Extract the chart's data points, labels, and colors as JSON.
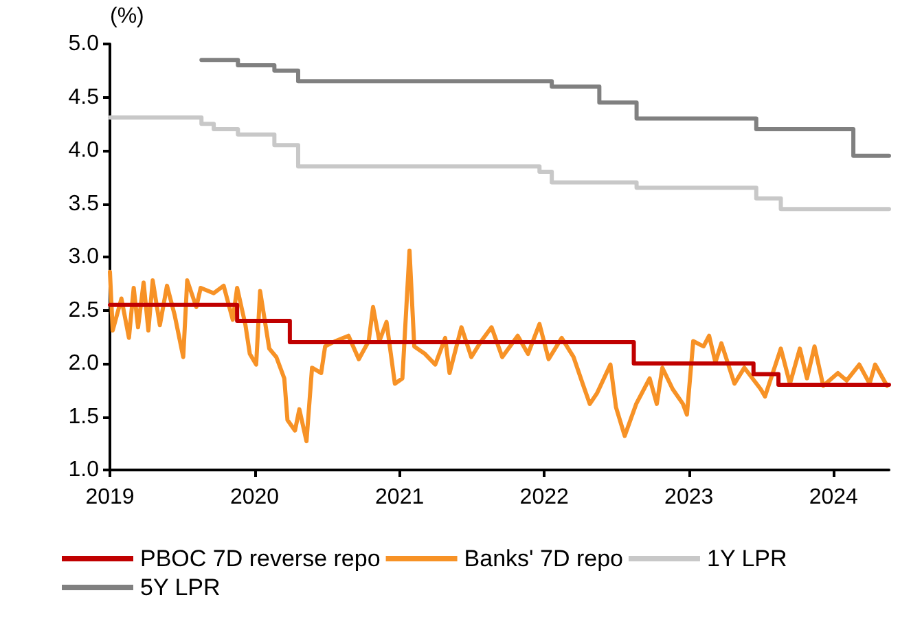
{
  "chart_data": {
    "type": "line",
    "ylabel": "(%)",
    "xlim": [
      "2019-01-01",
      "2024-05-20"
    ],
    "xticks": [
      "2019",
      "2020",
      "2021",
      "2022",
      "2023",
      "2024"
    ],
    "ylim": [
      1.0,
      5.0
    ],
    "yticks": [
      {
        "value": 1.0,
        "label": "1.0"
      },
      {
        "value": 1.5,
        "label": "1.5"
      },
      {
        "value": 2.0,
        "label": "2.0"
      },
      {
        "value": 2.5,
        "label": "2.5"
      },
      {
        "value": 3.0,
        "label": "3.0"
      },
      {
        "value": 3.5,
        "label": "3.5"
      },
      {
        "value": 4.0,
        "label": "4.0"
      },
      {
        "value": 4.5,
        "label": "4.5"
      },
      {
        "value": 5.0,
        "label": "5.0"
      }
    ],
    "grid": false,
    "legend": "bottom",
    "marker": "none",
    "line_style": "solid",
    "series": [
      {
        "name": "PBOC 7D reverse repo",
        "type": "step",
        "color": "#c00000",
        "x": [
          "2019-01-01",
          "2019-11-18",
          "2020-03-30",
          "2022-08-15",
          "2023-06-13",
          "2023-08-15",
          "2024-05-20"
        ],
        "values": [
          2.55,
          2.4,
          2.2,
          2.0,
          1.9,
          1.8,
          1.8
        ]
      },
      {
        "name": "Banks' 7D repo",
        "color": "#f79226",
        "x": [
          "2019-01-01",
          "2019-01-08",
          "2019-01-30",
          "2019-02-18",
          "2019-03-02",
          "2019-03-13",
          "2019-03-27",
          "2019-04-08",
          "2019-04-19",
          "2019-05-07",
          "2019-05-25",
          "2019-06-13",
          "2019-07-05",
          "2019-07-15",
          "2019-08-07",
          "2019-08-18",
          "2019-09-20",
          "2019-10-15",
          "2019-11-07",
          "2019-11-18",
          "2019-12-09",
          "2019-12-20",
          "2020-01-05",
          "2020-01-15",
          "2020-02-07",
          "2020-02-25",
          "2020-03-16",
          "2020-03-24",
          "2020-04-12",
          "2020-04-23",
          "2020-05-11",
          "2020-05-25",
          "2020-06-17",
          "2020-06-27",
          "2020-07-23",
          "2020-08-25",
          "2020-09-20",
          "2020-10-15",
          "2020-10-26",
          "2020-11-11",
          "2020-11-29",
          "2020-12-20",
          "2021-01-08",
          "2021-01-26",
          "2021-02-07",
          "2021-03-06",
          "2021-04-01",
          "2021-04-26",
          "2021-05-07",
          "2021-06-06",
          "2021-07-01",
          "2021-07-26",
          "2021-08-21",
          "2021-09-17",
          "2021-10-26",
          "2021-11-21",
          "2021-12-20",
          "2022-01-12",
          "2022-02-14",
          "2022-03-16",
          "2022-04-08",
          "2022-04-26",
          "2022-05-14",
          "2022-06-17",
          "2022-07-01",
          "2022-07-23",
          "2022-08-21",
          "2022-09-24",
          "2022-10-12",
          "2022-10-26",
          "2022-11-21",
          "2022-12-17",
          "2022-12-27",
          "2023-01-12",
          "2023-02-07",
          "2023-02-21",
          "2023-03-09",
          "2023-03-24",
          "2023-04-26",
          "2023-05-21",
          "2023-07-01",
          "2023-07-12",
          "2023-08-21",
          "2023-09-13",
          "2023-10-08",
          "2023-10-26",
          "2023-11-14",
          "2023-12-06",
          "2024-01-12",
          "2024-02-03",
          "2024-03-06",
          "2024-04-01",
          "2024-04-15",
          "2024-05-15"
        ],
        "values": [
          2.86,
          2.31,
          2.61,
          2.24,
          2.71,
          2.34,
          2.76,
          2.31,
          2.78,
          2.36,
          2.73,
          2.46,
          2.06,
          2.78,
          2.53,
          2.71,
          2.66,
          2.73,
          2.41,
          2.71,
          2.36,
          2.09,
          1.99,
          2.68,
          2.14,
          2.06,
          1.86,
          1.47,
          1.37,
          1.57,
          1.27,
          1.96,
          1.91,
          2.16,
          2.21,
          2.26,
          2.04,
          2.21,
          2.53,
          2.21,
          2.39,
          1.81,
          1.86,
          3.06,
          2.16,
          2.09,
          1.99,
          2.24,
          1.91,
          2.34,
          2.06,
          2.21,
          2.34,
          2.06,
          2.26,
          2.09,
          2.37,
          2.04,
          2.24,
          2.06,
          1.81,
          1.62,
          1.72,
          1.99,
          1.59,
          1.32,
          1.62,
          1.86,
          1.62,
          1.96,
          1.76,
          1.62,
          1.52,
          2.21,
          2.16,
          2.26,
          2.01,
          2.19,
          1.81,
          1.96,
          1.76,
          1.69,
          2.14,
          1.81,
          2.14,
          1.86,
          2.16,
          1.79,
          1.91,
          1.84,
          1.99,
          1.81,
          1.99,
          1.79
        ]
      },
      {
        "name": "1Y LPR",
        "type": "step",
        "color": "#c8c8c8",
        "x": [
          "2019-01-01",
          "2019-08-20",
          "2019-09-20",
          "2019-11-20",
          "2020-02-20",
          "2020-04-20",
          "2021-12-20",
          "2022-01-20",
          "2022-08-22",
          "2023-06-20",
          "2023-08-21",
          "2024-05-20"
        ],
        "values": [
          4.31,
          4.25,
          4.2,
          4.15,
          4.05,
          3.85,
          3.8,
          3.7,
          3.65,
          3.55,
          3.45,
          3.45
        ]
      },
      {
        "name": "5Y LPR",
        "type": "step",
        "color": "#808080",
        "x": [
          "2019-08-20",
          "2019-11-20",
          "2020-02-20",
          "2020-04-20",
          "2022-01-20",
          "2022-05-20",
          "2022-08-22",
          "2023-06-20",
          "2024-02-20",
          "2024-05-20"
        ],
        "values": [
          4.85,
          4.8,
          4.75,
          4.65,
          4.6,
          4.45,
          4.3,
          4.2,
          3.95,
          3.95
        ]
      }
    ]
  }
}
